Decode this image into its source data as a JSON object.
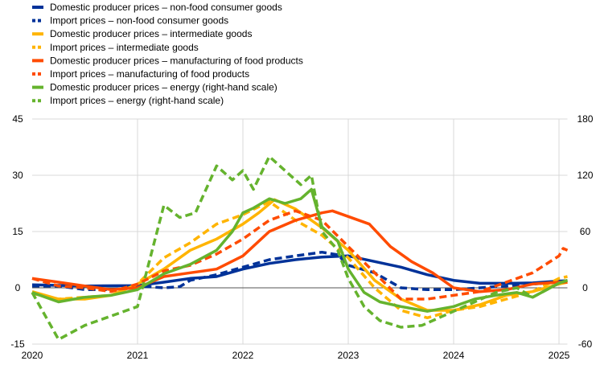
{
  "chart_data": {
    "type": "line",
    "title": "",
    "xlabel": "",
    "ylabel": "",
    "xlim": [
      2020,
      2025.08
    ],
    "ylim": [
      -15,
      45
    ],
    "ylim_right": [
      -60,
      180
    ],
    "yticks": [
      -15,
      0,
      15,
      30,
      45
    ],
    "yticks_right": [
      -60,
      0,
      60,
      120,
      180
    ],
    "xticks": [
      "2020",
      "2021",
      "2022",
      "2023",
      "2024",
      "2025"
    ],
    "grid": true,
    "legend_position": "top-left",
    "series": [
      {
        "name": "Domestic producer prices – non-food consumer goods",
        "color": "#003299",
        "dash": false,
        "axis": "left",
        "x": [
          2020,
          2020.5,
          2021,
          2021.25,
          2021.5,
          2021.75,
          2022,
          2022.25,
          2022.5,
          2022.75,
          2023,
          2023.25,
          2023.5,
          2023.75,
          2024,
          2024.25,
          2024.5,
          2024.75,
          2025,
          2025.08
        ],
        "y": [
          0.8,
          0.5,
          0.6,
          1.5,
          2.5,
          3,
          5,
          6.5,
          7.5,
          8.2,
          8.5,
          7,
          5.5,
          3.5,
          2,
          1.2,
          1.2,
          1.3,
          1.8,
          1.9
        ]
      },
      {
        "name": "Import prices – non-food consumer goods",
        "color": "#003299",
        "dash": true,
        "axis": "left",
        "x": [
          2020,
          2020.25,
          2020.5,
          2020.75,
          2021,
          2021.25,
          2021.4,
          2021.5,
          2021.75,
          2022,
          2022.25,
          2022.5,
          2022.75,
          2022.9,
          2023,
          2023.25,
          2023.5,
          2023.75,
          2024,
          2024.25,
          2024.5,
          2024.75,
          2025,
          2025.08
        ],
        "y": [
          0.5,
          0.5,
          -0.5,
          -0.5,
          0.5,
          0,
          0.3,
          2,
          3.5,
          5.5,
          7.5,
          8.5,
          9.5,
          8.8,
          6,
          4,
          0,
          -0.5,
          -0.5,
          0,
          0.5,
          1,
          1.5,
          1.5
        ]
      },
      {
        "name": "Domestic producer prices – intermediate goods",
        "color": "#ffb400",
        "dash": false,
        "axis": "left",
        "x": [
          2020,
          2020.25,
          2020.5,
          2020.75,
          2021,
          2021.25,
          2021.5,
          2021.75,
          2022,
          2022.15,
          2022.3,
          2022.5,
          2022.75,
          2023,
          2023.25,
          2023.5,
          2023.75,
          2024,
          2024.25,
          2024.5,
          2024.75,
          2025,
          2025.08
        ],
        "y": [
          -1,
          -3,
          -3,
          -2,
          1,
          5,
          10,
          13,
          17,
          20,
          23.5,
          21,
          16,
          10,
          2,
          -3,
          -6,
          -6,
          -4.5,
          -2,
          -1,
          1,
          1.5
        ]
      },
      {
        "name": "Import prices – intermediate goods",
        "color": "#ffb400",
        "dash": true,
        "axis": "left",
        "x": [
          2020,
          2020.25,
          2020.5,
          2020.75,
          2021,
          2021.25,
          2021.5,
          2021.75,
          2022,
          2022.25,
          2022.5,
          2022.75,
          2023,
          2023.25,
          2023.5,
          2023.75,
          2024,
          2024.25,
          2024.5,
          2024.75,
          2025,
          2025.08
        ],
        "y": [
          -1.5,
          -3,
          -2.5,
          -2,
          1,
          8,
          12,
          17,
          19.5,
          23,
          18,
          14,
          8,
          0,
          -6,
          -8,
          -6,
          -5,
          -3,
          -1,
          2.5,
          3
        ]
      },
      {
        "name": "Domestic producer prices – manufacturing of food products",
        "color": "#ff4b00",
        "dash": false,
        "axis": "left",
        "x": [
          2020,
          2020.25,
          2020.5,
          2020.75,
          2021,
          2021.25,
          2021.5,
          2021.75,
          2022,
          2022.25,
          2022.5,
          2022.75,
          2022.85,
          2023,
          2023.2,
          2023.4,
          2023.6,
          2023.8,
          2024,
          2024.25,
          2024.5,
          2024.75,
          2025,
          2025.08
        ],
        "y": [
          2.5,
          1.5,
          0.5,
          -0.5,
          0,
          3,
          4,
          5,
          8.5,
          15,
          18,
          20,
          20.5,
          19,
          17,
          11,
          7,
          4,
          0,
          -1,
          -0.5,
          1,
          1.5,
          1.5
        ]
      },
      {
        "name": "Import prices – manufacturing of food products",
        "color": "#ff4b00",
        "dash": true,
        "axis": "left",
        "x": [
          2020,
          2020.25,
          2020.5,
          2020.75,
          2021,
          2021.25,
          2021.5,
          2021.75,
          2022,
          2022.25,
          2022.5,
          2022.75,
          2023,
          2023.25,
          2023.5,
          2023.75,
          2024,
          2024.25,
          2024.5,
          2024.75,
          2025,
          2025.04,
          2025.08
        ],
        "y": [
          2.5,
          0.5,
          0,
          -1,
          1,
          4.5,
          6,
          9,
          13,
          18,
          20.5,
          18,
          11,
          4,
          -3,
          -3,
          -2,
          -1,
          1.5,
          4,
          8.5,
          10.5,
          10
        ]
      },
      {
        "name": "Domestic producer prices – energy (right-hand scale)",
        "color": "#65b32e",
        "dash": false,
        "axis": "right",
        "x": [
          2020,
          2020.25,
          2020.5,
          2020.75,
          2021,
          2021.25,
          2021.5,
          2021.75,
          2021.9,
          2022,
          2022.1,
          2022.25,
          2022.4,
          2022.55,
          2022.65,
          2022.75,
          2022.9,
          2023,
          2023.15,
          2023.3,
          2023.5,
          2023.75,
          2024,
          2024.2,
          2024.4,
          2024.6,
          2024.75,
          2025,
          2025.08
        ],
        "y": [
          -5,
          -15,
          -10,
          -8,
          -2,
          15,
          25,
          40,
          60,
          80,
          85,
          95,
          90,
          95,
          105,
          65,
          50,
          20,
          -5,
          -15,
          -20,
          -25,
          -20,
          -12,
          -8,
          -5,
          -10,
          5,
          8
        ]
      },
      {
        "name": "Import prices – energy (right-hand scale)",
        "color": "#65b32e",
        "dash": true,
        "axis": "right",
        "x": [
          2020,
          2020.25,
          2020.5,
          2020.75,
          2021,
          2021.25,
          2021.4,
          2021.55,
          2021.75,
          2021.9,
          2022,
          2022.1,
          2022.25,
          2022.4,
          2022.55,
          2022.65,
          2022.75,
          2022.9,
          2023,
          2023.15,
          2023.3,
          2023.5,
          2023.7,
          2024,
          2024.2,
          2024.4,
          2024.6,
          2024.75,
          2025,
          2025.08
        ],
        "y": [
          -5,
          -55,
          -40,
          -30,
          -20,
          88,
          75,
          80,
          130,
          115,
          125,
          105,
          140,
          125,
          110,
          120,
          60,
          40,
          10,
          -20,
          -35,
          -42,
          -40,
          -25,
          -15,
          -5,
          0,
          -10,
          5,
          8
        ]
      }
    ]
  }
}
